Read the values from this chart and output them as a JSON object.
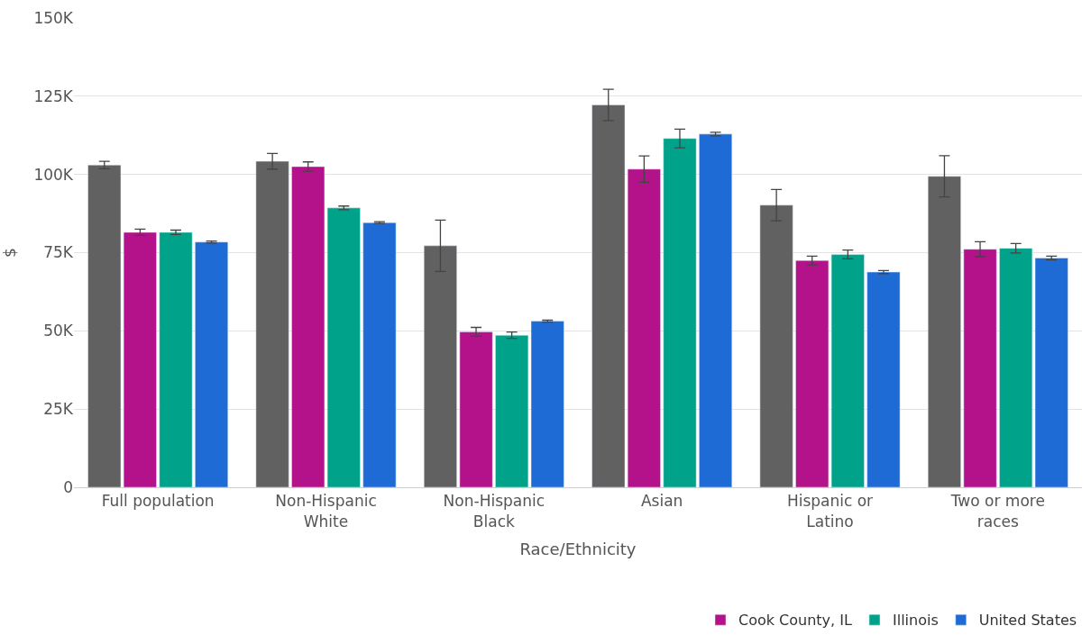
{
  "chart_data": {
    "type": "bar",
    "xlabel": "Race/Ethnicity",
    "ylabel": "$",
    "categories": [
      "Full population",
      "Non-Hispanic White",
      "Non-Hispanic Black",
      "Asian",
      "Hispanic or Latino",
      "Two or more races"
    ],
    "series": [
      {
        "color": "#616161",
        "values": [
          103000,
          104200,
          77200,
          122200,
          90200,
          99400
        ],
        "errors": [
          1200,
          2500,
          8200,
          5000,
          5000,
          6600
        ]
      },
      {
        "name": "Cook County, IL",
        "color": "#b3128a",
        "values": [
          81500,
          102500,
          49700,
          101700,
          72500,
          76100
        ],
        "errors": [
          1000,
          1500,
          1400,
          4200,
          1400,
          2400
        ]
      },
      {
        "name": "Illinois",
        "color": "#00a38a",
        "values": [
          81500,
          89300,
          48600,
          111500,
          74400,
          76400
        ],
        "errors": [
          700,
          600,
          1000,
          3000,
          1400,
          1500
        ]
      },
      {
        "name": "United States",
        "color": "#1f6bd6",
        "values": [
          78400,
          84600,
          53100,
          112900,
          68800,
          73300
        ],
        "errors": [
          300,
          300,
          300,
          600,
          500,
          600
        ]
      }
    ],
    "ylim": [
      0,
      150000
    ],
    "yticks": [
      {
        "value": 0,
        "label": "0"
      },
      {
        "value": 25000,
        "label": "25K"
      },
      {
        "value": 50000,
        "label": "50K"
      },
      {
        "value": 75000,
        "label": "75K"
      },
      {
        "value": 100000,
        "label": "100K"
      },
      {
        "value": 125000,
        "label": "125K"
      },
      {
        "value": 150000,
        "label": "150K"
      }
    ],
    "grid": "y",
    "legend": "bottom"
  }
}
